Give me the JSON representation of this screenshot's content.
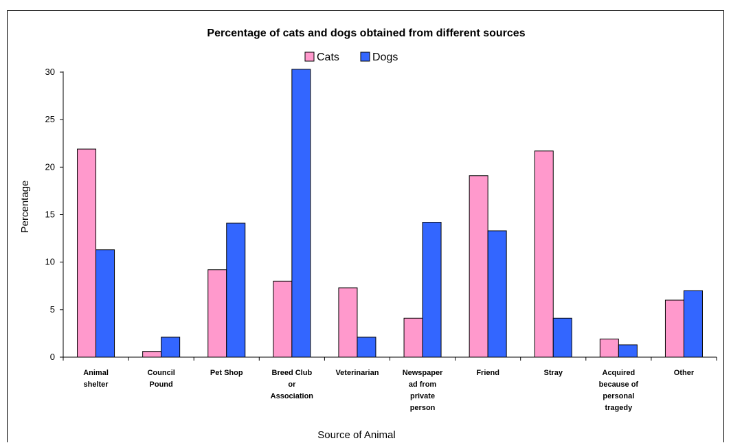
{
  "chart_data": {
    "type": "bar",
    "title": "Percentage of cats and dogs obtained from different sources",
    "xlabel": "Source of Animal",
    "ylabel": "Percentage",
    "ylim": [
      0,
      30
    ],
    "yticks": [
      0,
      5,
      10,
      15,
      20,
      25,
      30
    ],
    "legend_position": "top-center",
    "grid": false,
    "categories": [
      [
        "Animal",
        "shelter"
      ],
      [
        "Council",
        "Pound"
      ],
      [
        "Pet Shop"
      ],
      [
        "Breed Club",
        "or",
        "Association"
      ],
      [
        "Veterinarian"
      ],
      [
        "Newspaper",
        "ad from",
        "private",
        "person"
      ],
      [
        "Friend"
      ],
      [
        "Stray"
      ],
      [
        "Acquired",
        "because of",
        "personal",
        "tragedy"
      ],
      [
        "Other"
      ]
    ],
    "series": [
      {
        "name": "Cats",
        "color": "#ff99cc",
        "values": [
          21.9,
          0.6,
          9.2,
          8.0,
          7.3,
          4.1,
          19.1,
          21.7,
          1.9,
          6.0
        ]
      },
      {
        "name": "Dogs",
        "color": "#3366ff",
        "values": [
          11.3,
          2.1,
          14.1,
          30.3,
          2.1,
          14.2,
          13.3,
          4.1,
          1.3,
          7.0
        ]
      }
    ]
  }
}
